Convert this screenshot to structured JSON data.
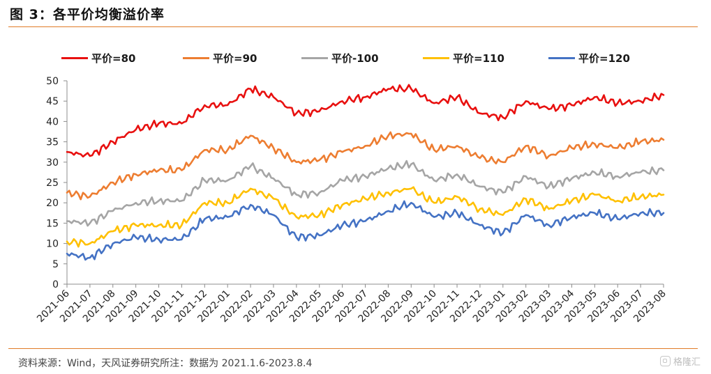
{
  "figure": {
    "title": "图 3：各平价均衡溢价率",
    "source": "资料来源：Wind，天风证券研究所注：数据为 2021.1.6-2023.8.4",
    "watermark": "格隆汇"
  },
  "chart_data": {
    "type": "line",
    "title": "",
    "xlabel": "",
    "ylabel": "",
    "ylim": [
      0,
      50
    ],
    "yticks": [
      0,
      5,
      10,
      15,
      20,
      25,
      30,
      35,
      40,
      45,
      50
    ],
    "grid": false,
    "legend_position": "top",
    "x": [
      "2021-06",
      "2021-07",
      "2021-08",
      "2021-09",
      "2021-10",
      "2021-11",
      "2021-12",
      "2022-01",
      "2022-02",
      "2022-03",
      "2022-04",
      "2022-05",
      "2022-06",
      "2022-07",
      "2022-08",
      "2022-09",
      "2022-10",
      "2022-11",
      "2022-12",
      "2023-01",
      "2023-02",
      "2023-03",
      "2023-04",
      "2023-05",
      "2023-06",
      "2023-07",
      "2023-08"
    ],
    "series": [
      {
        "name": "平价=80",
        "color": "#e8100f",
        "values": [
          32.5,
          31.5,
          35,
          38,
          39.5,
          39.5,
          44,
          44,
          48,
          46,
          42,
          42.5,
          45,
          46,
          48,
          48,
          44.5,
          46,
          42,
          41,
          45,
          43,
          44,
          46,
          44.5,
          45,
          46.5
        ]
      },
      {
        "name": "平价=90",
        "color": "#ed7d31",
        "values": [
          22.5,
          21.5,
          25,
          27,
          28,
          28,
          33,
          33,
          36.5,
          33.5,
          30,
          30.5,
          32.5,
          34,
          36.5,
          37,
          33,
          34,
          31,
          30,
          34,
          31.5,
          33.5,
          34.5,
          33.5,
          35,
          35.5
        ]
      },
      {
        "name": "平价-100",
        "color": "#a5a5a5",
        "values": [
          15.5,
          15,
          18,
          20,
          20.5,
          20.5,
          25.5,
          25.5,
          29,
          26,
          22,
          22.5,
          25.5,
          26.5,
          28.5,
          29.5,
          25.5,
          27,
          24,
          22.5,
          26.5,
          24,
          26,
          27.5,
          26.5,
          27.5,
          28
        ]
      },
      {
        "name": "平价=110",
        "color": "#ffc000",
        "values": [
          10.5,
          10,
          13,
          14.5,
          14.5,
          14.5,
          20,
          20,
          23.5,
          21,
          16.5,
          17,
          19.5,
          21,
          22.5,
          23.5,
          20,
          21.5,
          18.5,
          17,
          21,
          18.5,
          20.5,
          22,
          20.5,
          21.5,
          22
        ]
      },
      {
        "name": "平价=120",
        "color": "#4472c4",
        "values": [
          7.5,
          6.5,
          10,
          11.5,
          11,
          11,
          16,
          16.5,
          19.5,
          17,
          11.5,
          12,
          14.5,
          15.5,
          18,
          20,
          16.5,
          17.5,
          14.5,
          12.5,
          17,
          14.5,
          16.5,
          17.5,
          16,
          17.5,
          17.5
        ]
      }
    ]
  }
}
